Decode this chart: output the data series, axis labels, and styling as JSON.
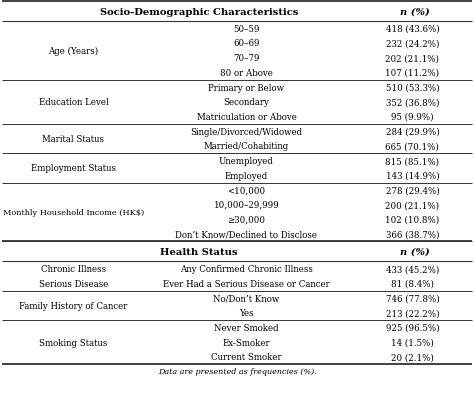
{
  "title1": "Socio-Demographic Characteristics",
  "title1_right": "n (%)",
  "title2": "Health Status",
  "title2_right": "n (%)",
  "footer": "Data are presented as frequencies (%).",
  "fontsize": 6.2,
  "header_fontsize": 7.2,
  "footer_fontsize": 5.8,
  "bg_color": "#f5f5f0",
  "sections": [
    {
      "label": "Age (Years)",
      "subrows": [
        {
          "center": "50–59",
          "right": "418 (43.6%)"
        },
        {
          "center": "60–69",
          "right": "232 (24.2%)"
        },
        {
          "center": "70–79",
          "right": "202 (21.1%)"
        },
        {
          "center": "80 or Above",
          "right": "107 (11.2%)"
        }
      ]
    },
    {
      "label": "Education Level",
      "subrows": [
        {
          "center": "Primary or Below",
          "right": "510 (53.3%)"
        },
        {
          "center": "Secondary",
          "right": "352 (36.8%)"
        },
        {
          "center": "Matriculation or Above",
          "right": "95 (9.9%)"
        }
      ]
    },
    {
      "label": "Marital Status",
      "subrows": [
        {
          "center": "Single/Divorced/Widowed",
          "right": "284 (29.9%)"
        },
        {
          "center": "Married/Cohabiting",
          "right": "665 (70.1%)"
        }
      ]
    },
    {
      "label": "Employment Status",
      "subrows": [
        {
          "center": "Unemployed",
          "right": "815 (85.1%)"
        },
        {
          "center": "Employed",
          "right": "143 (14.9%)"
        }
      ]
    },
    {
      "label": "Monthly Household Income (HK$)",
      "subrows": [
        {
          "center": "<10,000",
          "right": "278 (29.4%)"
        },
        {
          "center": "10,000–29,999",
          "right": "200 (21.1%)"
        },
        {
          "center": "≥30,000",
          "right": "102 (10.8%)"
        },
        {
          "center": "Don’t Know/Declined to Disclose",
          "right": "366 (38.7%)"
        }
      ]
    }
  ],
  "health_sections": [
    {
      "label1": "Chronic Illness",
      "label2": "Serious Disease",
      "subrows": [
        {
          "center": "Any Confirmed Chronic Illness",
          "right": "433 (45.2%)"
        },
        {
          "center": "Ever Had a Serious Disease or Cancer",
          "right": "81 (8.4%)"
        }
      ]
    },
    {
      "label": "Family History of Cancer",
      "subrows": [
        {
          "center": "No/Don’t Know",
          "right": "746 (77.8%)"
        },
        {
          "center": "Yes",
          "right": "213 (22.2%)"
        }
      ]
    },
    {
      "label": "Smoking Status",
      "subrows": [
        {
          "center": "Never Smoked",
          "right": "925 (96.5%)"
        },
        {
          "center": "Ex-Smoker",
          "right": "14 (1.5%)"
        },
        {
          "center": "Current Smoker",
          "right": "20 (2.1%)"
        }
      ]
    }
  ]
}
